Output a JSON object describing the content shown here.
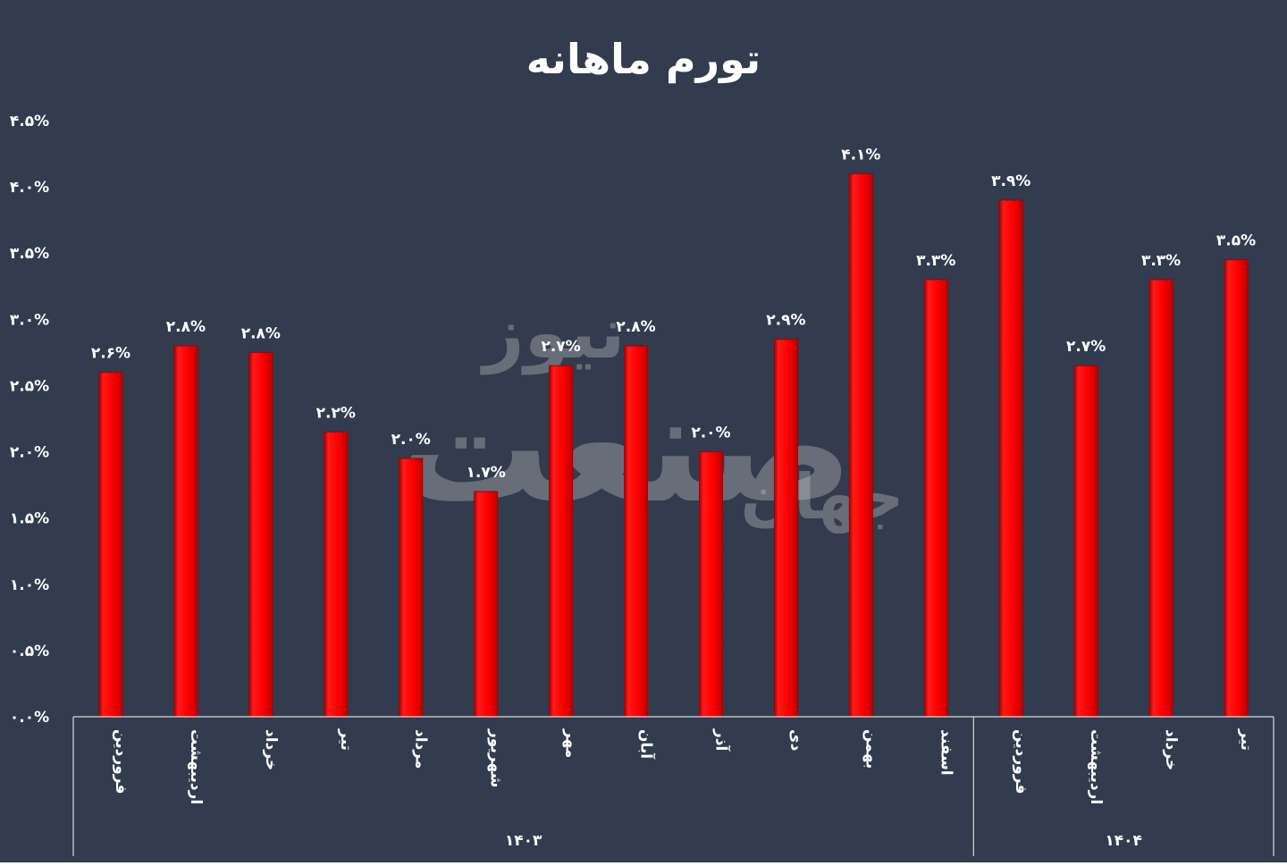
{
  "colors": {
    "background": "#323c4e",
    "bar": "#ff0000",
    "bar_dark": "#a00000",
    "text": "#ffffff",
    "axis_line": "#d9d9d9"
  },
  "watermark": {
    "main": "صنعت",
    "sub1": "نیوز",
    "sub2": "جهان"
  },
  "chart_data": {
    "type": "bar",
    "title": "تورم ماهانه",
    "xlabel": "",
    "ylabel": "",
    "ylim": [
      0,
      4.5
    ],
    "yticks": [
      0,
      0.5,
      1,
      1.5,
      2,
      2.5,
      3,
      3.5,
      4,
      4.5
    ],
    "ytick_labels": [
      "۰.۰%",
      "۰.۵%",
      "۱.۰%",
      "۱.۵%",
      "۲.۰%",
      "۲.۵%",
      "۳.۰%",
      "۳.۵%",
      "۴.۰%",
      "۴.۵%"
    ],
    "grid": false,
    "legend": "none",
    "categories": [
      "فروردین",
      "اردیبهشت",
      "خرداد",
      "تیر",
      "مرداد",
      "شهریور",
      "مهر",
      "آبان",
      "آذر",
      "دی",
      "بهمن",
      "اسفند",
      "فروردین",
      "اردیبهشت",
      "خرداد",
      "تیر"
    ],
    "values": [
      2.6,
      2.8,
      2.75,
      2.15,
      1.95,
      1.7,
      2.65,
      2.8,
      2.0,
      2.85,
      4.1,
      3.3,
      3.9,
      2.65,
      3.3,
      3.45
    ],
    "data_labels": [
      "۲.۶%",
      "۲.۸%",
      "۲.۸%",
      "۲.۲%",
      "۲.۰%",
      "۱.۷%",
      "۲.۷%",
      "۲.۸%",
      "۲.۰%",
      "۲.۹%",
      "۴.۱%",
      "۳.۳%",
      "۳.۹%",
      "۲.۷%",
      "۳.۳%",
      "۳.۵%"
    ],
    "groups": [
      {
        "label": "۱۴۰۳",
        "start": 0,
        "end": 11
      },
      {
        "label": "۱۴۰۴",
        "start": 12,
        "end": 15
      }
    ]
  }
}
